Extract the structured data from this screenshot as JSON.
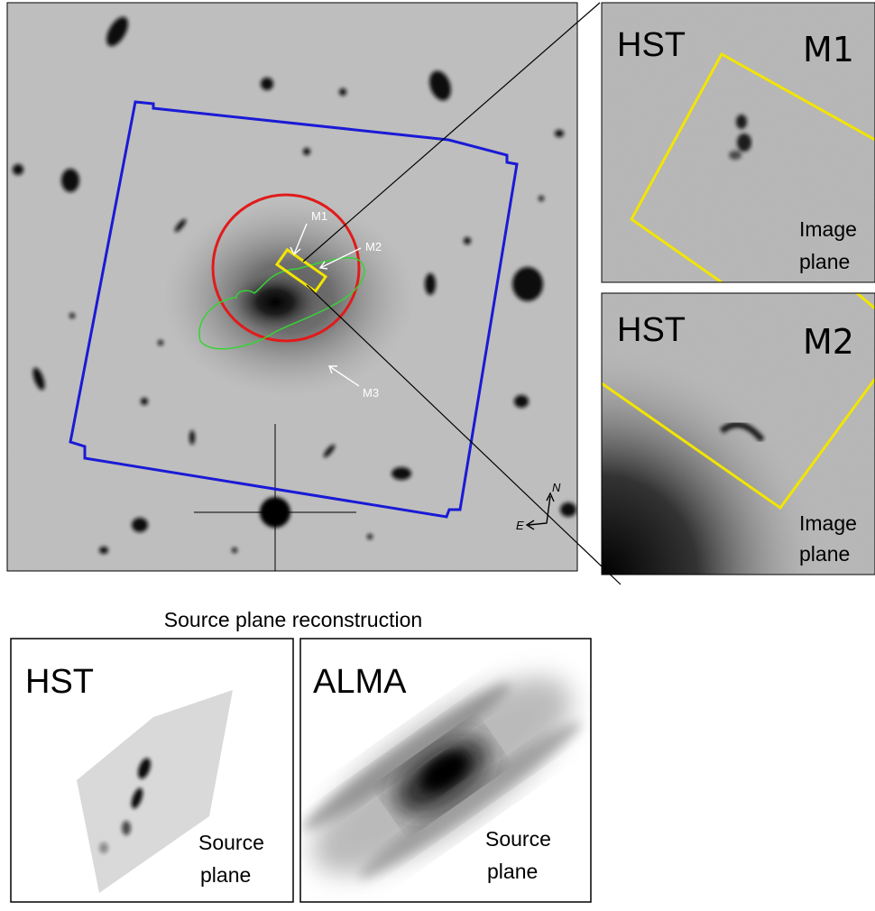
{
  "main_image": {
    "labels": [
      "M1",
      "M2",
      "M3"
    ],
    "compass": {
      "north": "N",
      "east": "E"
    }
  },
  "zoom_panels": [
    {
      "instrument": "HST",
      "label": "M1",
      "plane": [
        "Image",
        "plane"
      ]
    },
    {
      "instrument": "HST",
      "label": "M2",
      "plane": [
        "Image",
        "plane"
      ]
    }
  ],
  "source_section": {
    "title": "Source plane reconstruction",
    "panels": [
      {
        "instrument": "HST",
        "plane": [
          "Source",
          "plane"
        ]
      },
      {
        "instrument": "ALMA",
        "plane": [
          "Source",
          "plane"
        ]
      }
    ]
  }
}
